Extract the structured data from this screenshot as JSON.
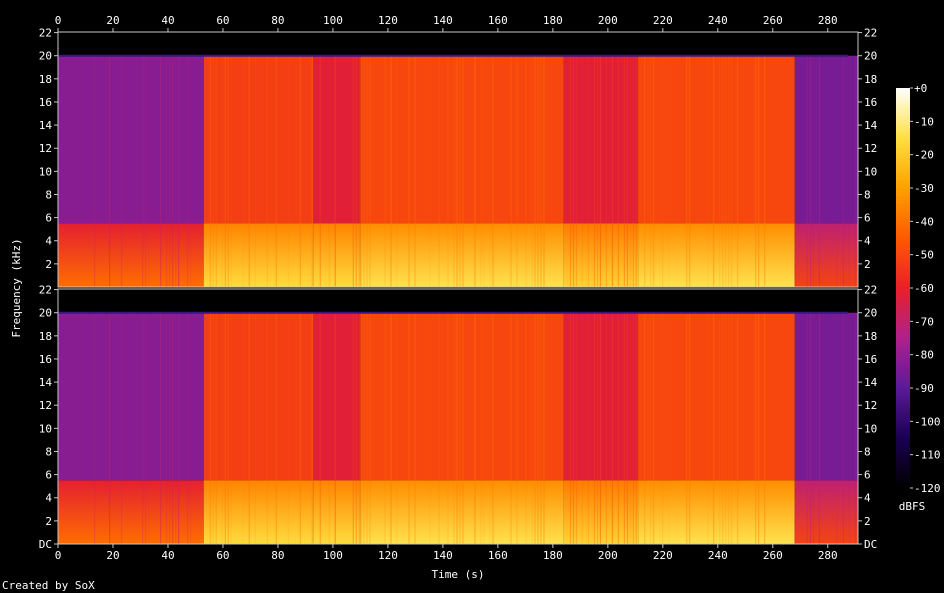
{
  "footer": "Created by SoX",
  "colors": {
    "background": "#000000",
    "axis": "#c8c8c8",
    "text": "#ffffff",
    "palette": [
      "#000000",
      "#1a0050",
      "#5a1a9a",
      "#b0208a",
      "#e8202a",
      "#ff5a00",
      "#ffa000",
      "#ffe040",
      "#ffffff"
    ]
  },
  "chart_data": {
    "type": "heatmap",
    "title": "",
    "xlabel": "Time (s)",
    "ylabel": "Frequency (kHz)",
    "xlim": [
      0,
      291
    ],
    "x_ticks": [
      0,
      20,
      40,
      60,
      80,
      100,
      120,
      140,
      160,
      180,
      200,
      220,
      240,
      260,
      280
    ],
    "ylim_khz": [
      0,
      22.05
    ],
    "y_ticks_top": [
      "22",
      "20",
      "18",
      "16",
      "14",
      "12",
      "10",
      "8",
      "6",
      "4",
      "2"
    ],
    "y_ticks_bottom": [
      "22",
      "20",
      "18",
      "16",
      "14",
      "12",
      "10",
      "8",
      "6",
      "4",
      "2",
      "DC"
    ],
    "channels": 2,
    "colorbar": {
      "label": "dBFS",
      "ticks": [
        "+0",
        "-10",
        "-20",
        "-30",
        "-40",
        "-50",
        "-60",
        "-70",
        "-80",
        "-90",
        "-100",
        "-110",
        "-120"
      ],
      "range_db": [
        -120,
        0
      ]
    },
    "lowpass_khz": 20,
    "segments_sec": [
      {
        "from": 0,
        "to": 53,
        "level_high_db": -82,
        "level_low_db": -55
      },
      {
        "from": 53,
        "to": 93,
        "level_high_db": -52,
        "level_low_db": -30
      },
      {
        "from": 93,
        "to": 110,
        "level_high_db": -62,
        "level_low_db": -30
      },
      {
        "from": 110,
        "to": 184,
        "level_high_db": -50,
        "level_low_db": -28
      },
      {
        "from": 184,
        "to": 211,
        "level_high_db": -62,
        "level_low_db": -32
      },
      {
        "from": 211,
        "to": 268,
        "level_high_db": -50,
        "level_low_db": -28
      },
      {
        "from": 268,
        "to": 291,
        "level_high_db": -85,
        "level_low_db": -65
      }
    ]
  }
}
